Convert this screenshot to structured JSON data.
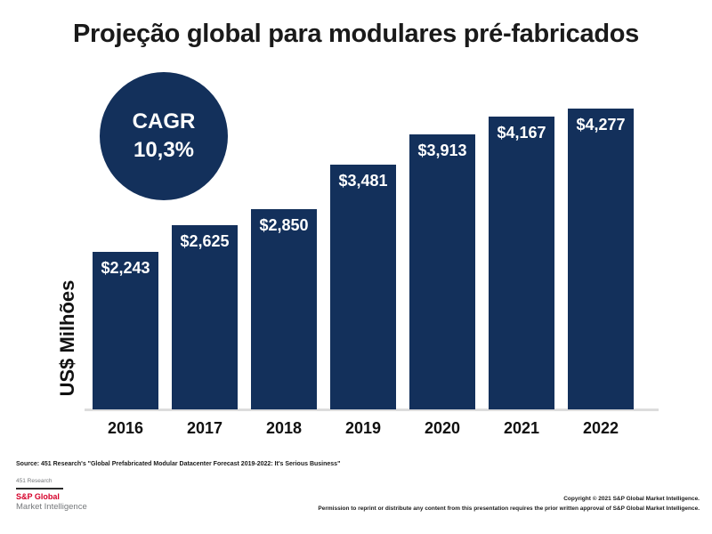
{
  "title": "Projeção global para modulares pré-fabricados",
  "cagr_badge": {
    "line1": "CAGR",
    "line2": "10,3%"
  },
  "chart_data": {
    "type": "bar",
    "title": "Projeção global para modulares pré-fabricados",
    "categories": [
      "2016",
      "2017",
      "2018",
      "2019",
      "2020",
      "2021",
      "2022"
    ],
    "values": [
      2243,
      2625,
      2850,
      3481,
      3913,
      4167,
      4277
    ],
    "value_labels": [
      "$2,243",
      "$2,625",
      "$2,850",
      "$3,481",
      "$3,913",
      "$4,167",
      "$4,277"
    ],
    "xlabel": "",
    "ylabel": "US$ Milhões",
    "ylim": [
      0,
      4277
    ],
    "grid": false,
    "legend": "none",
    "bar_color": "#13305B",
    "value_label_color": "#FFFFFF",
    "annotation": "CAGR 10,3%"
  },
  "footer": {
    "source": "Source: 451 Research's \"Global Prefabricated Modular Datacenter Forecast 2019-2022: It's Serious Business\"",
    "logo": {
      "top": "451 Research",
      "brand": "S&P Global",
      "sub": "Market Intelligence"
    },
    "copyright_line1": "Copyright © 2021 S&P Global Market Intelligence.",
    "copyright_line2": "Permission to reprint or distribute any content from this presentation requires the prior written approval of S&P Global Market Intelligence."
  },
  "colors": {
    "navy": "#13305B",
    "brand_red": "#D6002A",
    "grey": "#75787B",
    "axis_line": "#DCDCDC"
  }
}
